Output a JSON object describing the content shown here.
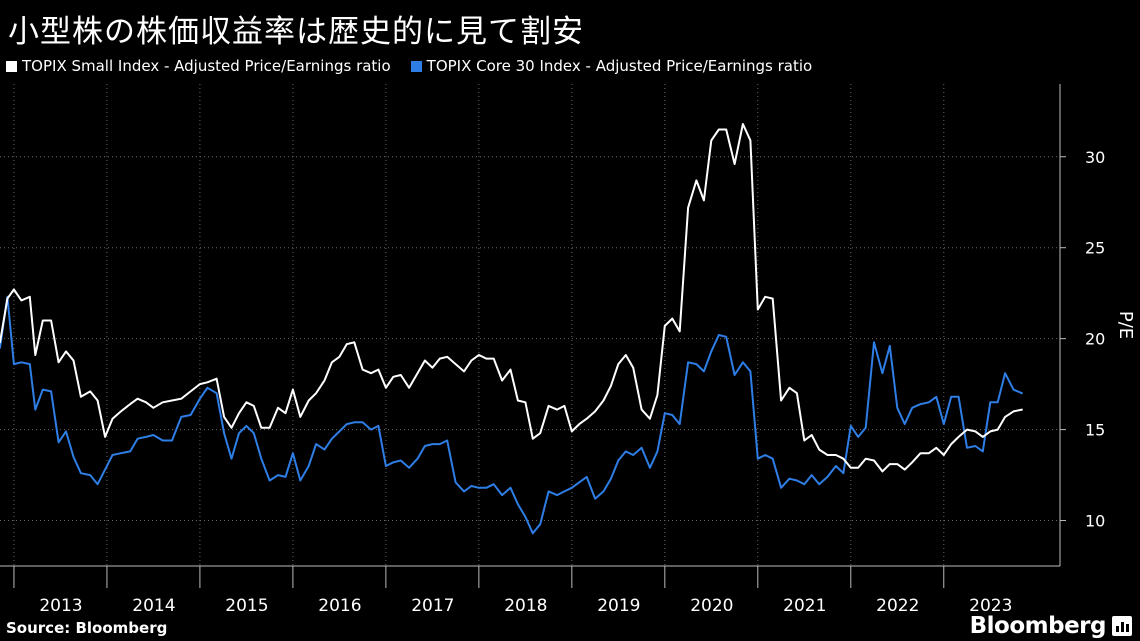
{
  "title": "小型株の株価収益率は歴史的に見て割安",
  "source": "Source: Bloomberg",
  "brand": "Bloomberg",
  "colors": {
    "background": "#000000",
    "small": "#ffffff",
    "core": "#2e7ee6",
    "grid": "#6a6a6a"
  },
  "chart_data": {
    "type": "line",
    "ylabel": "P/E",
    "ylim": [
      7.5,
      34
    ],
    "yticks": [
      10,
      15,
      20,
      25,
      30
    ],
    "xlim": [
      2012.85,
      2024.25
    ],
    "xticks": [
      2013,
      2014,
      2015,
      2016,
      2017,
      2018,
      2019,
      2020,
      2021,
      2022,
      2023
    ],
    "grid": true,
    "legend_position": "top-left",
    "series": [
      {
        "name": "TOPIX Small Index - Adjusted Price/Earnings ratio",
        "color": "#ffffff",
        "points": [
          [
            2012.85,
            19.8
          ],
          [
            2012.93,
            22.2
          ],
          [
            2013.0,
            22.7
          ],
          [
            2013.08,
            22.1
          ],
          [
            2013.17,
            22.3
          ],
          [
            2013.23,
            19.1
          ],
          [
            2013.31,
            21.0
          ],
          [
            2013.4,
            21.0
          ],
          [
            2013.48,
            18.7
          ],
          [
            2013.56,
            19.3
          ],
          [
            2013.64,
            18.8
          ],
          [
            2013.72,
            16.8
          ],
          [
            2013.82,
            17.1
          ],
          [
            2013.9,
            16.6
          ],
          [
            2013.98,
            14.6
          ],
          [
            2014.06,
            15.6
          ],
          [
            2014.15,
            16.0
          ],
          [
            2014.25,
            16.4
          ],
          [
            2014.33,
            16.7
          ],
          [
            2014.42,
            16.5
          ],
          [
            2014.5,
            16.2
          ],
          [
            2014.6,
            16.5
          ],
          [
            2014.7,
            16.6
          ],
          [
            2014.8,
            16.7
          ],
          [
            2014.9,
            17.1
          ],
          [
            2015.0,
            17.5
          ],
          [
            2015.08,
            17.6
          ],
          [
            2015.18,
            17.8
          ],
          [
            2015.26,
            15.7
          ],
          [
            2015.34,
            15.1
          ],
          [
            2015.42,
            15.9
          ],
          [
            2015.5,
            16.5
          ],
          [
            2015.58,
            16.3
          ],
          [
            2015.66,
            15.1
          ],
          [
            2015.75,
            15.1
          ],
          [
            2015.84,
            16.2
          ],
          [
            2015.92,
            15.9
          ],
          [
            2016.0,
            17.2
          ],
          [
            2016.08,
            15.7
          ],
          [
            2016.17,
            16.6
          ],
          [
            2016.25,
            17.0
          ],
          [
            2016.34,
            17.7
          ],
          [
            2016.42,
            18.7
          ],
          [
            2016.5,
            19.0
          ],
          [
            2016.58,
            19.7
          ],
          [
            2016.66,
            19.8
          ],
          [
            2016.75,
            18.3
          ],
          [
            2016.84,
            18.1
          ],
          [
            2016.92,
            18.3
          ],
          [
            2017.0,
            17.3
          ],
          [
            2017.08,
            17.9
          ],
          [
            2017.16,
            18.0
          ],
          [
            2017.25,
            17.3
          ],
          [
            2017.34,
            18.1
          ],
          [
            2017.42,
            18.8
          ],
          [
            2017.5,
            18.4
          ],
          [
            2017.58,
            18.9
          ],
          [
            2017.66,
            19.0
          ],
          [
            2017.75,
            18.6
          ],
          [
            2017.84,
            18.2
          ],
          [
            2017.92,
            18.8
          ],
          [
            2018.0,
            19.1
          ],
          [
            2018.08,
            18.9
          ],
          [
            2018.16,
            18.9
          ],
          [
            2018.25,
            17.7
          ],
          [
            2018.34,
            18.3
          ],
          [
            2018.42,
            16.6
          ],
          [
            2018.5,
            16.5
          ],
          [
            2018.58,
            14.5
          ],
          [
            2018.66,
            14.8
          ],
          [
            2018.75,
            16.3
          ],
          [
            2018.84,
            16.1
          ],
          [
            2018.92,
            16.3
          ],
          [
            2019.0,
            14.9
          ],
          [
            2019.08,
            15.3
          ],
          [
            2019.16,
            15.6
          ],
          [
            2019.25,
            16.0
          ],
          [
            2019.34,
            16.6
          ],
          [
            2019.42,
            17.4
          ],
          [
            2019.5,
            18.6
          ],
          [
            2019.58,
            19.1
          ],
          [
            2019.66,
            18.4
          ],
          [
            2019.75,
            16.1
          ],
          [
            2019.84,
            15.6
          ],
          [
            2019.92,
            16.9
          ],
          [
            2020.0,
            20.7
          ],
          [
            2020.08,
            21.1
          ],
          [
            2020.16,
            20.4
          ],
          [
            2020.25,
            27.2
          ],
          [
            2020.34,
            28.7
          ],
          [
            2020.42,
            27.6
          ],
          [
            2020.5,
            30.9
          ],
          [
            2020.58,
            31.5
          ],
          [
            2020.66,
            31.5
          ],
          [
            2020.75,
            29.6
          ],
          [
            2020.84,
            31.8
          ],
          [
            2020.92,
            30.9
          ],
          [
            2021.0,
            21.6
          ],
          [
            2021.08,
            22.3
          ],
          [
            2021.16,
            22.2
          ],
          [
            2021.25,
            16.6
          ],
          [
            2021.34,
            17.3
          ],
          [
            2021.42,
            17.0
          ],
          [
            2021.5,
            14.4
          ],
          [
            2021.58,
            14.7
          ],
          [
            2021.66,
            13.9
          ],
          [
            2021.75,
            13.6
          ],
          [
            2021.84,
            13.6
          ],
          [
            2021.92,
            13.4
          ],
          [
            2022.0,
            12.9
          ],
          [
            2022.08,
            12.9
          ],
          [
            2022.16,
            13.4
          ],
          [
            2022.25,
            13.3
          ],
          [
            2022.34,
            12.7
          ],
          [
            2022.42,
            13.1
          ],
          [
            2022.5,
            13.1
          ],
          [
            2022.58,
            12.8
          ],
          [
            2022.66,
            13.2
          ],
          [
            2022.75,
            13.7
          ],
          [
            2022.84,
            13.7
          ],
          [
            2022.92,
            14.0
          ],
          [
            2023.0,
            13.6
          ],
          [
            2023.08,
            14.2
          ],
          [
            2023.16,
            14.6
          ],
          [
            2023.25,
            15.0
          ],
          [
            2023.34,
            14.9
          ],
          [
            2023.42,
            14.6
          ],
          [
            2023.5,
            14.9
          ],
          [
            2023.58,
            15.0
          ],
          [
            2023.66,
            15.7
          ],
          [
            2023.75,
            16.0
          ],
          [
            2023.84,
            16.1
          ]
        ]
      },
      {
        "name": "TOPIX Core 30 Index - Adjusted Price/Earnings ratio",
        "color": "#2e7ee6",
        "points": [
          [
            2012.85,
            19.5
          ],
          [
            2012.93,
            22.3
          ],
          [
            2013.0,
            18.6
          ],
          [
            2013.08,
            18.7
          ],
          [
            2013.17,
            18.6
          ],
          [
            2013.23,
            16.1
          ],
          [
            2013.31,
            17.2
          ],
          [
            2013.4,
            17.1
          ],
          [
            2013.48,
            14.3
          ],
          [
            2013.56,
            14.9
          ],
          [
            2013.64,
            13.5
          ],
          [
            2013.72,
            12.6
          ],
          [
            2013.82,
            12.5
          ],
          [
            2013.9,
            12.0
          ],
          [
            2013.98,
            12.8
          ],
          [
            2014.06,
            13.6
          ],
          [
            2014.15,
            13.7
          ],
          [
            2014.25,
            13.8
          ],
          [
            2014.33,
            14.5
          ],
          [
            2014.42,
            14.6
          ],
          [
            2014.5,
            14.7
          ],
          [
            2014.6,
            14.4
          ],
          [
            2014.7,
            14.4
          ],
          [
            2014.8,
            15.7
          ],
          [
            2014.9,
            15.8
          ],
          [
            2015.0,
            16.7
          ],
          [
            2015.08,
            17.3
          ],
          [
            2015.18,
            17.0
          ],
          [
            2015.26,
            14.8
          ],
          [
            2015.34,
            13.4
          ],
          [
            2015.42,
            14.8
          ],
          [
            2015.5,
            15.2
          ],
          [
            2015.58,
            14.8
          ],
          [
            2015.66,
            13.4
          ],
          [
            2015.75,
            12.2
          ],
          [
            2015.84,
            12.5
          ],
          [
            2015.92,
            12.4
          ],
          [
            2016.0,
            13.7
          ],
          [
            2016.08,
            12.2
          ],
          [
            2016.17,
            13.0
          ],
          [
            2016.25,
            14.2
          ],
          [
            2016.34,
            13.9
          ],
          [
            2016.42,
            14.5
          ],
          [
            2016.5,
            14.9
          ],
          [
            2016.58,
            15.3
          ],
          [
            2016.66,
            15.4
          ],
          [
            2016.75,
            15.4
          ],
          [
            2016.84,
            15.0
          ],
          [
            2016.92,
            15.2
          ],
          [
            2017.0,
            13.0
          ],
          [
            2017.08,
            13.2
          ],
          [
            2017.16,
            13.3
          ],
          [
            2017.25,
            12.9
          ],
          [
            2017.34,
            13.4
          ],
          [
            2017.42,
            14.1
          ],
          [
            2017.5,
            14.2
          ],
          [
            2017.58,
            14.2
          ],
          [
            2017.66,
            14.4
          ],
          [
            2017.75,
            12.1
          ],
          [
            2017.84,
            11.6
          ],
          [
            2017.92,
            11.9
          ],
          [
            2018.0,
            11.8
          ],
          [
            2018.08,
            11.8
          ],
          [
            2018.16,
            12.0
          ],
          [
            2018.25,
            11.4
          ],
          [
            2018.34,
            11.8
          ],
          [
            2018.42,
            10.9
          ],
          [
            2018.5,
            10.2
          ],
          [
            2018.58,
            9.3
          ],
          [
            2018.66,
            9.8
          ],
          [
            2018.75,
            11.6
          ],
          [
            2018.84,
            11.4
          ],
          [
            2018.92,
            11.6
          ],
          [
            2019.0,
            11.8
          ],
          [
            2019.08,
            12.1
          ],
          [
            2019.16,
            12.4
          ],
          [
            2019.25,
            11.2
          ],
          [
            2019.34,
            11.6
          ],
          [
            2019.42,
            12.3
          ],
          [
            2019.5,
            13.3
          ],
          [
            2019.58,
            13.8
          ],
          [
            2019.66,
            13.6
          ],
          [
            2019.75,
            14.0
          ],
          [
            2019.84,
            12.9
          ],
          [
            2019.92,
            13.8
          ],
          [
            2020.0,
            15.9
          ],
          [
            2020.08,
            15.8
          ],
          [
            2020.16,
            15.3
          ],
          [
            2020.25,
            18.7
          ],
          [
            2020.34,
            18.6
          ],
          [
            2020.42,
            18.2
          ],
          [
            2020.5,
            19.3
          ],
          [
            2020.58,
            20.2
          ],
          [
            2020.66,
            20.1
          ],
          [
            2020.75,
            18.0
          ],
          [
            2020.84,
            18.7
          ],
          [
            2020.92,
            18.2
          ],
          [
            2021.0,
            13.4
          ],
          [
            2021.08,
            13.6
          ],
          [
            2021.16,
            13.4
          ],
          [
            2021.25,
            11.8
          ],
          [
            2021.34,
            12.3
          ],
          [
            2021.42,
            12.2
          ],
          [
            2021.5,
            12.0
          ],
          [
            2021.58,
            12.5
          ],
          [
            2021.66,
            12.0
          ],
          [
            2021.75,
            12.4
          ],
          [
            2021.84,
            13.0
          ],
          [
            2021.92,
            12.6
          ],
          [
            2022.0,
            15.2
          ],
          [
            2022.08,
            14.6
          ],
          [
            2022.16,
            15.1
          ],
          [
            2022.25,
            19.8
          ],
          [
            2022.34,
            18.1
          ],
          [
            2022.42,
            19.6
          ],
          [
            2022.5,
            16.2
          ],
          [
            2022.58,
            15.3
          ],
          [
            2022.66,
            16.2
          ],
          [
            2022.75,
            16.4
          ],
          [
            2022.84,
            16.5
          ],
          [
            2022.92,
            16.8
          ],
          [
            2023.0,
            15.3
          ],
          [
            2023.08,
            16.8
          ],
          [
            2023.16,
            16.8
          ],
          [
            2023.25,
            14.0
          ],
          [
            2023.34,
            14.1
          ],
          [
            2023.42,
            13.8
          ],
          [
            2023.5,
            16.5
          ],
          [
            2023.58,
            16.5
          ],
          [
            2023.66,
            18.1
          ],
          [
            2023.75,
            17.2
          ],
          [
            2023.84,
            17.0
          ]
        ]
      }
    ]
  }
}
